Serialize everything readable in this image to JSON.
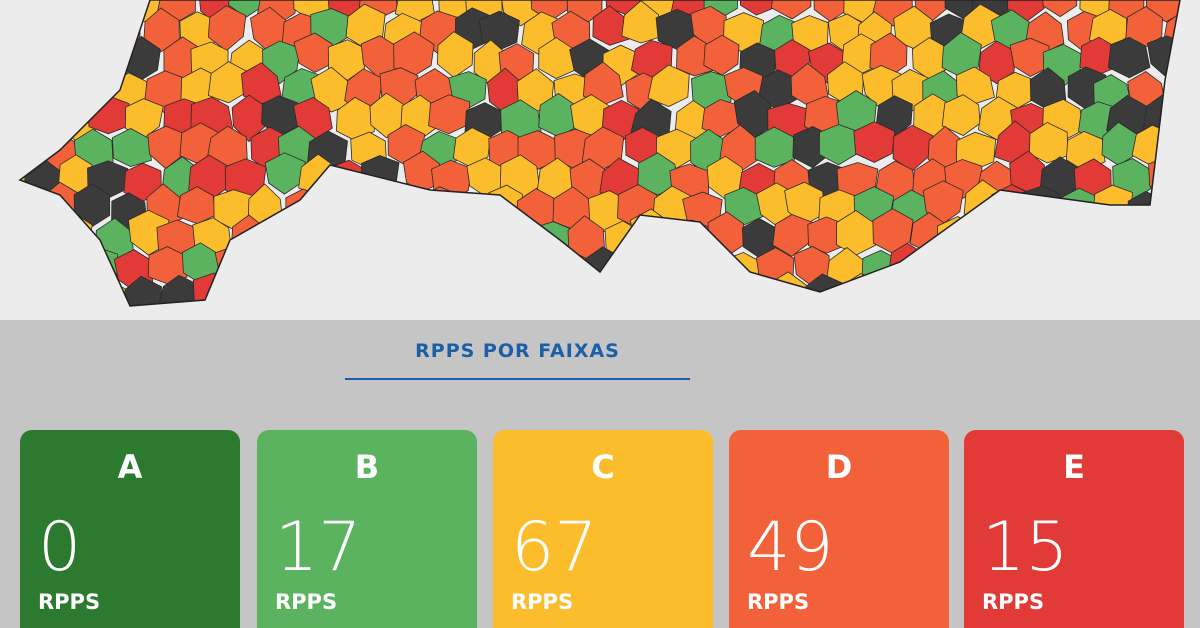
{
  "title": "RPPS POR FAIXAS",
  "cards": [
    {
      "grade": "A",
      "count": "0",
      "unit": "RPPS",
      "color": "#2b7a2f"
    },
    {
      "grade": "B",
      "count": "17",
      "unit": "RPPS",
      "color": "#5cb35f"
    },
    {
      "grade": "C",
      "count": "67",
      "unit": "RPPS",
      "color": "#fbbd2c"
    },
    {
      "grade": "D",
      "count": "49",
      "unit": "RPPS",
      "color": "#f3613a"
    },
    {
      "grade": "E",
      "count": "15",
      "unit": "RPPS",
      "color": "#e23a36"
    }
  ]
}
